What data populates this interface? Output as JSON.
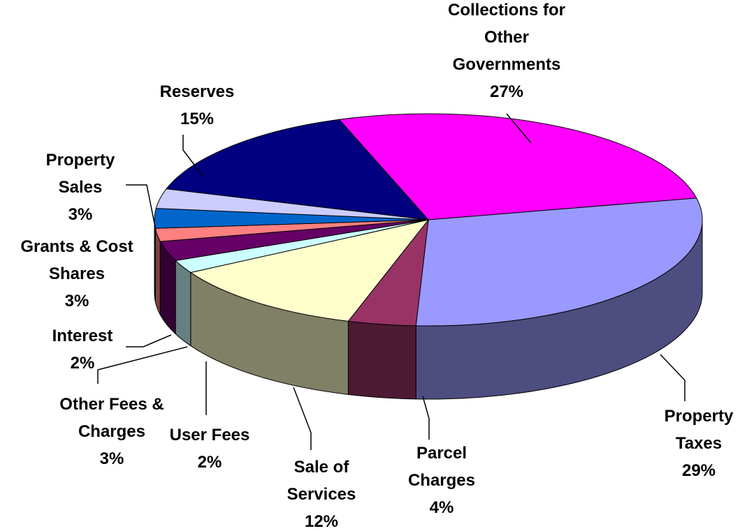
{
  "chart_data": {
    "type": "pie",
    "categories": [
      "Collections for Other Governments",
      "Property Taxes",
      "Parcel Charges",
      "Sale of Services",
      "User Fees",
      "Other Fees & Charges",
      "Interest",
      "Grants & Cost Shares",
      "Property Sales",
      "Reserves"
    ],
    "values": [
      27,
      29,
      4,
      12,
      2,
      3,
      2,
      3,
      3,
      15
    ],
    "value_labels": [
      "27%",
      "29%",
      "4%",
      "12%",
      "2%",
      "3%",
      "2%",
      "3%",
      "3%",
      "15%"
    ],
    "colors": [
      "#ff00ff",
      "#9999ff",
      "#993366",
      "#ffffcc",
      "#ccffff",
      "#660066",
      "#ff8080",
      "#0066cc",
      "#ccccff",
      "#000080"
    ]
  }
}
